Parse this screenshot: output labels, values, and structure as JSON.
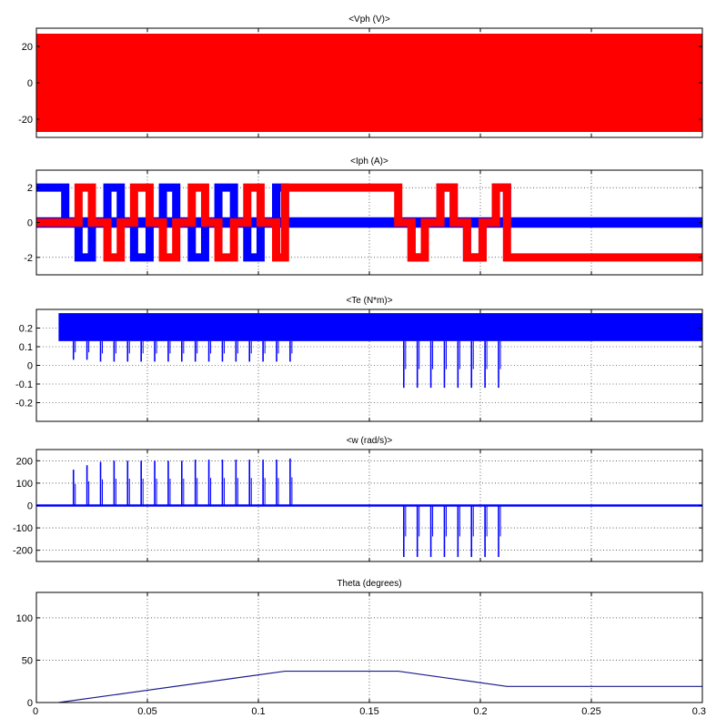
{
  "colors": {
    "red": "#ff0000",
    "blue": "#0000ff",
    "navy": "#1a1a8c",
    "grid": "#000000",
    "frame": "#000000",
    "background": "#ffffff"
  },
  "chart_data": [
    {
      "type": "area",
      "title": "<Vph (V)>",
      "xlim": [
        0,
        0.3
      ],
      "ylim": [
        -30,
        30
      ],
      "yticks": [
        -20,
        0,
        20
      ],
      "grid": true,
      "series": [
        {
          "color": "red",
          "kind": "band",
          "band": [
            -27,
            27
          ],
          "x_range": [
            0,
            0.3
          ]
        }
      ]
    },
    {
      "type": "line",
      "title": "<Iph (A)>",
      "xlim": [
        0,
        0.3
      ],
      "ylim": [
        -3,
        3
      ],
      "yticks": [
        -2,
        0,
        2
      ],
      "grid": true,
      "series": [
        {
          "color": "blue",
          "kind": "band",
          "band": [
            -0.3,
            0.3
          ],
          "x_range": [
            0,
            0.3
          ]
        },
        {
          "color": "blue",
          "kind": "step",
          "x": [
            0,
            0.013,
            0.019,
            0.025,
            0.032,
            0.038,
            0.044,
            0.051,
            0.057,
            0.063,
            0.07,
            0.076,
            0.082,
            0.089,
            0.095,
            0.101,
            0.108,
            0.112,
            0.163,
            0.169,
            0.175,
            0.182,
            0.188,
            0.194,
            0.201,
            0.207,
            0.212
          ],
          "y": [
            2,
            0,
            -2,
            0,
            2,
            0,
            -2,
            0,
            2,
            0,
            -2,
            0,
            2,
            0,
            -2,
            0,
            2,
            0,
            0,
            -2,
            0,
            2,
            0,
            -2,
            0,
            2,
            0
          ]
        },
        {
          "color": "red",
          "kind": "step",
          "x": [
            0,
            0.019,
            0.025,
            0.032,
            0.038,
            0.044,
            0.051,
            0.057,
            0.063,
            0.07,
            0.076,
            0.082,
            0.089,
            0.095,
            0.101,
            0.108,
            0.112,
            0.163,
            0.169,
            0.175,
            0.182,
            0.188,
            0.194,
            0.201,
            0.207,
            0.212,
            0.3
          ],
          "y": [
            0,
            2,
            0,
            -2,
            0,
            2,
            0,
            -2,
            0,
            2,
            0,
            -2,
            0,
            2,
            0,
            -2,
            2,
            0,
            -2,
            0,
            2,
            0,
            -2,
            0,
            2,
            -2,
            -2
          ]
        }
      ]
    },
    {
      "type": "line",
      "title": "<Te (N*m)>",
      "xlim": [
        0,
        0.3
      ],
      "ylim": [
        -0.3,
        0.3
      ],
      "yticks": [
        -0.2,
        -0.1,
        0,
        0.1,
        0.2
      ],
      "grid": true,
      "series": [
        {
          "color": "blue",
          "kind": "band",
          "band": [
            0.13,
            0.28
          ],
          "x_range": [
            0.01,
            0.3
          ]
        },
        {
          "color": "blue",
          "kind": "spikes",
          "base": 0.13,
          "x": [
            0.0167,
            0.0228,
            0.0289,
            0.035,
            0.0411,
            0.0472,
            0.0533,
            0.0594,
            0.0655,
            0.0716,
            0.0777,
            0.0838,
            0.0899,
            0.096,
            0.1021,
            0.1082,
            0.1143
          ],
          "y": [
            0.03,
            0.03,
            0.02,
            0.02,
            0.02,
            0.02,
            0.02,
            0.02,
            0.02,
            0.02,
            0.02,
            0.02,
            0.02,
            0.02,
            0.02,
            0.02,
            0.02
          ]
        },
        {
          "color": "blue",
          "kind": "spikes",
          "base": 0.13,
          "x": [
            0.1655,
            0.1716,
            0.1777,
            0.1838,
            0.1899,
            0.196,
            0.2021,
            0.2082
          ],
          "y": [
            -0.12,
            -0.12,
            -0.12,
            -0.12,
            -0.12,
            -0.12,
            -0.12,
            -0.12
          ]
        }
      ]
    },
    {
      "type": "line",
      "title": "<w (rad/s)>",
      "xlim": [
        0,
        0.3
      ],
      "ylim": [
        -250,
        250
      ],
      "yticks": [
        -200,
        -100,
        0,
        100,
        200
      ],
      "grid": true,
      "series": [
        {
          "color": "blue",
          "kind": "band",
          "band": [
            -5,
            5
          ],
          "x_range": [
            0,
            0.3
          ]
        },
        {
          "color": "blue",
          "kind": "spikes",
          "base": 0,
          "x": [
            0.0167,
            0.0228,
            0.0289,
            0.035,
            0.0411,
            0.0472,
            0.0533,
            0.0594,
            0.0655,
            0.0716,
            0.0777,
            0.0838,
            0.0899,
            0.096,
            0.1021,
            0.1082,
            0.1143
          ],
          "y": [
            160,
            180,
            195,
            200,
            200,
            200,
            200,
            200,
            200,
            205,
            205,
            205,
            205,
            205,
            205,
            205,
            210
          ]
        },
        {
          "color": "blue",
          "kind": "spikes",
          "base": 0,
          "x": [
            0.1655,
            0.1716,
            0.1777,
            0.1838,
            0.1899,
            0.196,
            0.2021,
            0.2082
          ],
          "y": [
            -230,
            -230,
            -230,
            -230,
            -230,
            -230,
            -230,
            -230
          ]
        }
      ]
    },
    {
      "type": "line",
      "title": "Theta (degrees)",
      "xlim": [
        0,
        0.3
      ],
      "ylim": [
        0,
        130
      ],
      "yticks": [
        0,
        50,
        100
      ],
      "xticks": [
        0,
        0.05,
        0.1,
        0.15,
        0.2,
        0.25,
        0.3
      ],
      "grid": true,
      "series": [
        {
          "color": "navy",
          "kind": "line",
          "x": [
            0.01,
            0.112,
            0.163,
            0.212,
            0.3
          ],
          "y": [
            0,
            37,
            37,
            19,
            19
          ]
        }
      ]
    }
  ]
}
